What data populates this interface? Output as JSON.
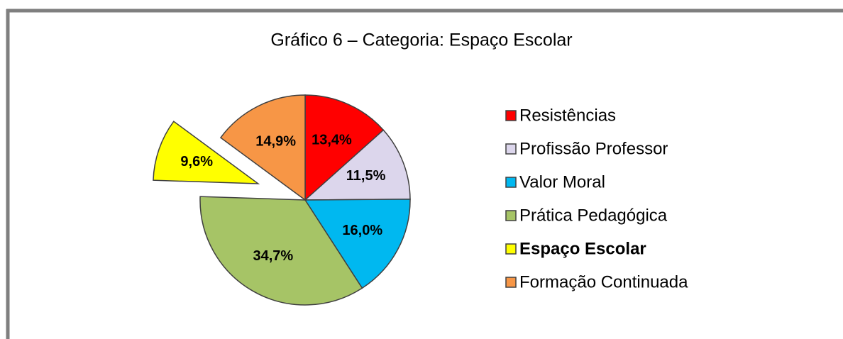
{
  "chart_data": {
    "type": "pie",
    "title": "Gráfico 6 – Categoria: Espaço Escolar",
    "categories": [
      "Resistências",
      "Profissão Professor",
      "Valor Moral",
      "Prática Pedagógica",
      "Espaço Escolar",
      "Formação Continuada"
    ],
    "values": [
      13.4,
      11.5,
      16.0,
      34.7,
      9.6,
      14.9
    ],
    "value_labels": [
      "13,4%",
      "11,5%",
      "16,0%",
      "34,7%",
      "9,6%",
      "14,9%"
    ],
    "colors": [
      "#ff0000",
      "#dcd6ec",
      "#00b8f0",
      "#a6c466",
      "#ffff00",
      "#f79646"
    ],
    "explode": [
      false,
      false,
      false,
      false,
      true,
      false
    ],
    "legend": "right"
  }
}
